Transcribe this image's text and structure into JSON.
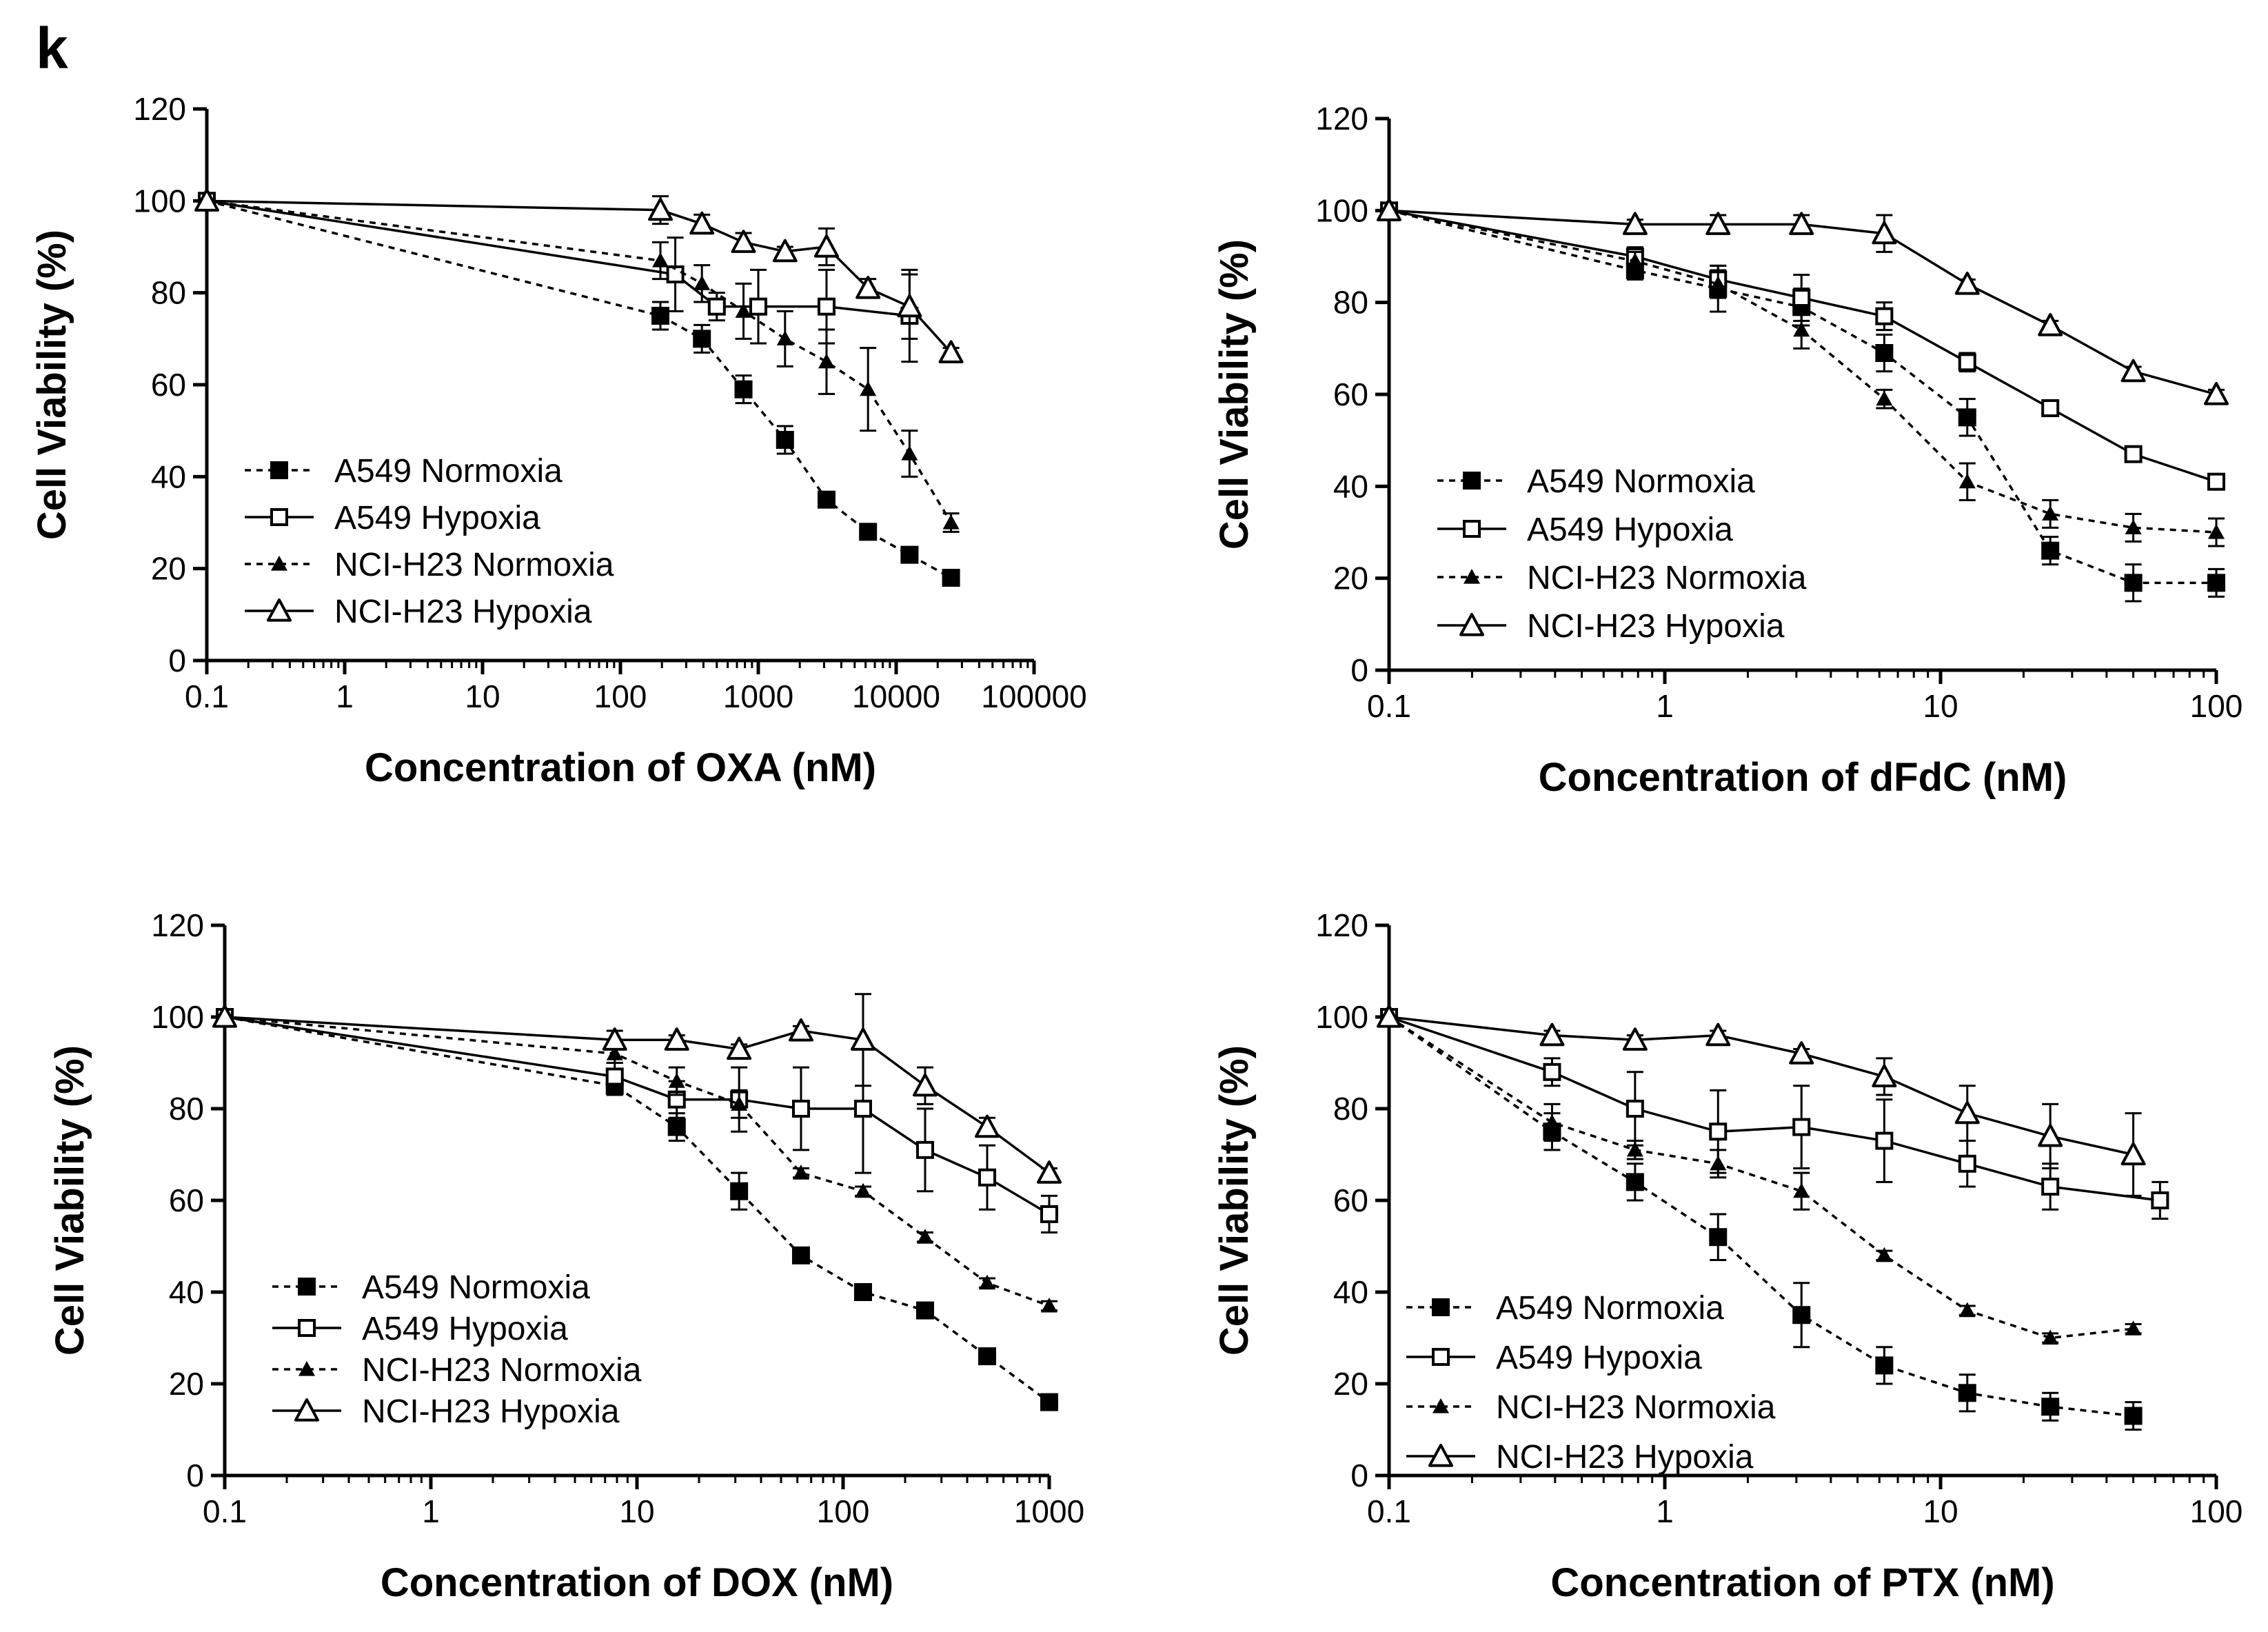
{
  "figure": {
    "panel_letter": "k"
  },
  "chart_data": [
    {
      "type": "line",
      "title": "",
      "xlabel": "Concentration of OXA (nM)",
      "ylabel": "Cell Viability (%)",
      "xscale": "log",
      "xlim": [
        0.1,
        100000
      ],
      "ylim": [
        0,
        120
      ],
      "x_ticks": [
        0.1,
        1,
        10,
        100,
        1000,
        10000,
        100000
      ],
      "x_tick_labels": [
        "0.1",
        "1",
        "10",
        "100",
        "1000",
        "10000",
        "100000"
      ],
      "y_ticks": [
        0,
        20,
        40,
        60,
        80,
        100,
        120
      ],
      "y_tick_labels": [
        "0",
        "20",
        "40",
        "60",
        "80",
        "100",
        "120"
      ],
      "legend_position": "bottom-left",
      "series": [
        {
          "name": "A549 Normoxia",
          "marker": "filled-square",
          "line": "dashed",
          "x": [
            0.1,
            195,
            390,
            781,
            1563,
            3125,
            6250,
            12500,
            25000
          ],
          "y": [
            100,
            75,
            70,
            59,
            48,
            35,
            28,
            23,
            18
          ],
          "err": [
            0,
            3,
            3,
            3,
            3,
            1,
            1,
            1,
            1
          ]
        },
        {
          "name": "A549 Hypoxia",
          "marker": "open-square",
          "line": "solid",
          "x": [
            0.1,
            250,
            500,
            1000,
            3125,
            12500
          ],
          "y": [
            100,
            84,
            77,
            77,
            77,
            75
          ],
          "err": [
            0,
            8,
            3,
            8,
            8,
            10
          ]
        },
        {
          "name": "NCI-H23 Normoxia",
          "marker": "filled-triangle",
          "line": "dashed",
          "x": [
            0.1,
            195,
            390,
            781,
            1563,
            3125,
            6250,
            12500,
            25000
          ],
          "y": [
            100,
            87,
            82,
            76,
            70,
            65,
            59,
            45,
            30
          ],
          "err": [
            0,
            4,
            4,
            6,
            6,
            7,
            9,
            5,
            2
          ]
        },
        {
          "name": "NCI-H23 Hypoxia",
          "marker": "open-triangle",
          "line": "solid",
          "x": [
            0.1,
            195,
            390,
            781,
            1563,
            3125,
            6250,
            12500,
            25000
          ],
          "y": [
            100,
            98,
            95,
            91,
            89,
            90,
            81,
            77,
            67
          ],
          "err": [
            0,
            3,
            2,
            2,
            1,
            4,
            2,
            7,
            1
          ]
        }
      ]
    },
    {
      "type": "line",
      "title": "",
      "xlabel": "Concentration of dFdC (nM)",
      "ylabel": "Cell Viability (%)",
      "xscale": "log",
      "xlim": [
        0.1,
        100
      ],
      "ylim": [
        0,
        120
      ],
      "x_ticks": [
        0.1,
        1,
        10,
        100
      ],
      "x_tick_labels": [
        "0.1",
        "1",
        "10",
        "100"
      ],
      "y_ticks": [
        0,
        20,
        40,
        60,
        80,
        100,
        120
      ],
      "y_tick_labels": [
        "0",
        "20",
        "40",
        "60",
        "80",
        "100",
        "120"
      ],
      "legend_position": "bottom-left",
      "series": [
        {
          "name": "A549 Normoxia",
          "marker": "filled-square",
          "line": "dashed",
          "x": [
            0.1,
            0.78,
            1.56,
            3.13,
            6.25,
            12.5,
            25,
            50,
            100
          ],
          "y": [
            100,
            87,
            83,
            79,
            69,
            55,
            26,
            19,
            19
          ],
          "err": [
            0,
            2,
            5,
            4,
            4,
            4,
            3,
            4,
            3
          ]
        },
        {
          "name": "A549 Hypoxia",
          "marker": "open-square",
          "line": "solid",
          "x": [
            0.1,
            0.78,
            1.56,
            3.13,
            6.25,
            12.5,
            25,
            50,
            100
          ],
          "y": [
            100,
            90,
            85,
            81,
            77,
            67,
            57,
            47,
            41
          ],
          "err": [
            0,
            2,
            3,
            5,
            3,
            2,
            1,
            1,
            1
          ]
        },
        {
          "name": "NCI-H23 Normoxia",
          "marker": "filled-triangle",
          "line": "dashed",
          "x": [
            0.1,
            0.78,
            1.56,
            3.13,
            6.25,
            12.5,
            25,
            50,
            100
          ],
          "y": [
            100,
            89,
            84,
            74,
            59,
            41,
            34,
            31,
            30
          ],
          "err": [
            0,
            2,
            3,
            4,
            2,
            4,
            3,
            3,
            3
          ]
        },
        {
          "name": "NCI-H23 Hypoxia",
          "marker": "open-triangle",
          "line": "solid",
          "x": [
            0.1,
            0.78,
            1.56,
            3.13,
            6.25,
            12.5,
            25,
            50,
            100
          ],
          "y": [
            100,
            97,
            97,
            97,
            95,
            84,
            75,
            65,
            60
          ],
          "err": [
            0,
            1,
            2,
            2,
            4,
            1,
            1,
            1,
            1
          ]
        }
      ]
    },
    {
      "type": "line",
      "title": "",
      "xlabel": "Concentration of DOX (nM)",
      "ylabel": "Cell Viability (%)",
      "xscale": "log",
      "xlim": [
        0.1,
        1000
      ],
      "ylim": [
        0,
        120
      ],
      "x_ticks": [
        0.1,
        1,
        10,
        100,
        1000
      ],
      "x_tick_labels": [
        "0.1",
        "1",
        "10",
        "100",
        "1000"
      ],
      "y_ticks": [
        0,
        20,
        40,
        60,
        80,
        100,
        120
      ],
      "y_tick_labels": [
        "0",
        "20",
        "40",
        "60",
        "80",
        "100",
        "120"
      ],
      "legend_position": "bottom-left",
      "series": [
        {
          "name": "A549 Normoxia",
          "marker": "filled-square",
          "line": "dashed",
          "x": [
            0.1,
            7.8,
            15.6,
            31.3,
            62.5,
            125,
            250,
            500,
            1000
          ],
          "y": [
            100,
            85,
            76,
            62,
            48,
            40,
            36,
            26,
            16
          ],
          "err": [
            0,
            2,
            3,
            4,
            1,
            1,
            1,
            1,
            1
          ]
        },
        {
          "name": "A549 Hypoxia",
          "marker": "open-square",
          "line": "solid",
          "x": [
            0.1,
            7.8,
            15.6,
            31.3,
            62.5,
            125,
            250,
            500,
            1000
          ],
          "y": [
            100,
            87,
            82,
            82,
            80,
            80,
            71,
            65,
            57
          ],
          "err": [
            0,
            3,
            4,
            7,
            9,
            14,
            9,
            7,
            4
          ]
        },
        {
          "name": "NCI-H23 Normoxia",
          "marker": "filled-triangle",
          "line": "dashed",
          "x": [
            0.1,
            7.8,
            15.6,
            31.3,
            62.5,
            125,
            250,
            500,
            1000
          ],
          "y": [
            100,
            92,
            86,
            81,
            66,
            62,
            52,
            42,
            37
          ],
          "err": [
            0,
            2,
            3,
            3,
            1,
            1,
            1,
            1,
            1
          ]
        },
        {
          "name": "NCI-H23 Hypoxia",
          "marker": "open-triangle",
          "line": "solid",
          "x": [
            0.1,
            7.8,
            15.6,
            31.3,
            62.5,
            125,
            250,
            500,
            1000
          ],
          "y": [
            100,
            95,
            95,
            93,
            97,
            95,
            85,
            76,
            66
          ],
          "err": [
            0,
            2,
            1,
            1,
            1,
            10,
            4,
            2,
            1
          ]
        }
      ]
    },
    {
      "type": "line",
      "title": "",
      "xlabel": "Concentration of PTX (nM)",
      "ylabel": "Cell Viability (%)",
      "xscale": "log",
      "xlim": [
        0.1,
        100
      ],
      "ylim": [
        0,
        120
      ],
      "x_ticks": [
        0.1,
        1,
        10,
        100
      ],
      "x_tick_labels": [
        "0.1",
        "1",
        "10",
        "100"
      ],
      "y_ticks": [
        0,
        20,
        40,
        60,
        80,
        100,
        120
      ],
      "y_tick_labels": [
        "0",
        "20",
        "40",
        "60",
        "80",
        "100",
        "120"
      ],
      "legend_position": "bottom-left",
      "series": [
        {
          "name": "A549 Normoxia",
          "marker": "filled-square",
          "line": "dashed",
          "x": [
            0.1,
            0.39,
            0.78,
            1.56,
            3.13,
            6.25,
            12.5,
            25,
            50
          ],
          "y": [
            100,
            75,
            64,
            52,
            35,
            24,
            18,
            15,
            13
          ],
          "err": [
            0,
            4,
            4,
            5,
            7,
            4,
            4,
            3,
            3
          ]
        },
        {
          "name": "A549 Hypoxia",
          "marker": "open-square",
          "line": "solid",
          "x": [
            0.1,
            0.39,
            0.78,
            1.56,
            3.13,
            6.25,
            12.5,
            25,
            62.5
          ],
          "y": [
            100,
            88,
            80,
            75,
            76,
            73,
            68,
            63,
            60
          ],
          "err": [
            0,
            3,
            8,
            9,
            9,
            9,
            5,
            5,
            4
          ]
        },
        {
          "name": "NCI-H23 Normoxia",
          "marker": "filled-triangle",
          "line": "dashed",
          "x": [
            0.1,
            0.39,
            0.78,
            1.56,
            3.13,
            6.25,
            12.5,
            25,
            50
          ],
          "y": [
            100,
            77,
            71,
            68,
            62,
            48,
            36,
            30,
            32
          ],
          "err": [
            0,
            4,
            2,
            3,
            4,
            1,
            1,
            1,
            1
          ]
        },
        {
          "name": "NCI-H23 Hypoxia",
          "marker": "open-triangle",
          "line": "solid",
          "x": [
            0.1,
            0.39,
            0.78,
            1.56,
            3.13,
            6.25,
            12.5,
            25,
            50
          ],
          "y": [
            100,
            96,
            95,
            96,
            92,
            87,
            79,
            74,
            70
          ],
          "err": [
            0,
            1,
            1,
            1,
            1,
            4,
            6,
            7,
            9
          ]
        }
      ]
    }
  ]
}
